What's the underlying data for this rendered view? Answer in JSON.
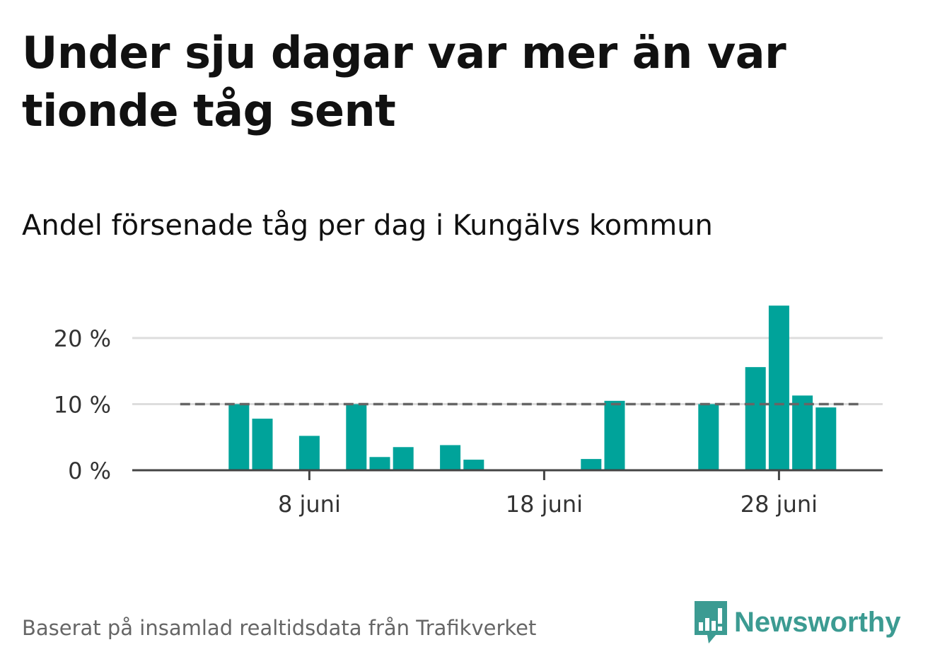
{
  "title": "Under sju dagar var mer än var tionde tåg sent",
  "subtitle": "Andel försenade tåg per dag i Kungälvs kommun",
  "footer": "Baserat på insamlad realtidsdata från Trafikverket",
  "brand": {
    "name": "Newsworthy",
    "icon": "bar-chart-speech-bubble-icon",
    "color": "#3c9b92"
  },
  "colors": {
    "bar": "#00a39a",
    "grid": "#dddddd",
    "axis": "#444444",
    "reference": "#666666"
  },
  "chart_data": {
    "type": "bar",
    "title": "Andel försenade tåg per dag i Kungälvs kommun",
    "xlabel": "",
    "ylabel": "",
    "ylim": [
      0,
      27
    ],
    "yticks": [
      0,
      10,
      20
    ],
    "ytick_labels": [
      "0 %",
      "10 %",
      "20 %"
    ],
    "xlim": [
      -0.5,
      30.5
    ],
    "xticks": [
      7,
      17,
      27
    ],
    "xtick_labels": [
      "8 juni",
      "18 juni",
      "28 juni"
    ],
    "reference_line": {
      "value": 10,
      "from": 1.5,
      "to": 30.5,
      "style": "dashed"
    },
    "grid": true,
    "categories": [
      "1 juni",
      "2 juni",
      "3 juni",
      "4 juni",
      "5 juni",
      "6 juni",
      "7 juni",
      "8 juni",
      "9 juni",
      "10 juni",
      "11 juni",
      "12 juni",
      "13 juni",
      "14 juni",
      "15 juni",
      "16 juni",
      "17 juni",
      "18 juni",
      "19 juni",
      "20 juni",
      "21 juni",
      "22 juni",
      "23 juni",
      "24 juni",
      "25 juni",
      "26 juni",
      "27 juni",
      "28 juni",
      "29 juni",
      "30 juni"
    ],
    "values": [
      0,
      0,
      0,
      0,
      10,
      7.8,
      0,
      5.2,
      0,
      10,
      2,
      3.5,
      0,
      3.8,
      1.6,
      0,
      0,
      0,
      0,
      1.7,
      10.5,
      0,
      0,
      0,
      10,
      0,
      15.6,
      24.9,
      11.3,
      9.5
    ]
  }
}
